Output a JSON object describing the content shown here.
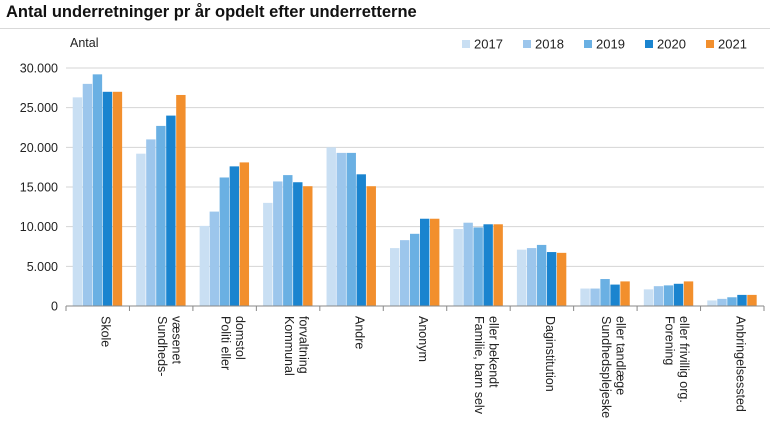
{
  "chart_data": {
    "type": "bar",
    "title": "Antal underretninger pr år opdelt efter underretterne",
    "ylabel": "Antal",
    "xlabel": "",
    "ylim": [
      0,
      30000
    ],
    "yticks": [
      0,
      5000,
      10000,
      15000,
      20000,
      25000,
      30000
    ],
    "ytick_labels": [
      "0",
      "5.000",
      "10.000",
      "15.000",
      "20.000",
      "25.000",
      "30.000"
    ],
    "grid": true,
    "legend_position": "top-right",
    "categories": [
      [
        "Skole"
      ],
      [
        "Sundheds-",
        "væsenet"
      ],
      [
        "Politi eller",
        "domstol"
      ],
      [
        "Kommunal",
        "forvaltning"
      ],
      [
        "Andre"
      ],
      [
        "Anonym"
      ],
      [
        "Familie, barn selv",
        "eller bekendt"
      ],
      [
        "Daginstitution"
      ],
      [
        "Sundhedsplejeske",
        "eller tandlæge"
      ],
      [
        "Forening",
        "eller frivillig org."
      ],
      [
        "Anbringelsessted"
      ]
    ],
    "series": [
      {
        "name": "2017",
        "color": "#c9dff3",
        "values": [
          26300,
          19200,
          10100,
          13000,
          20000,
          7300,
          9700,
          7100,
          2200,
          2100,
          700
        ]
      },
      {
        "name": "2018",
        "color": "#9cc6ec",
        "values": [
          28000,
          21000,
          11900,
          15700,
          19300,
          8300,
          10500,
          7300,
          2200,
          2500,
          900
        ]
      },
      {
        "name": "2019",
        "color": "#6ab0e3",
        "values": [
          29200,
          22700,
          16200,
          16500,
          19300,
          9100,
          9900,
          7700,
          3400,
          2600,
          1100
        ]
      },
      {
        "name": "2020",
        "color": "#1a84cf",
        "values": [
          27000,
          24000,
          17600,
          15600,
          16600,
          11000,
          10300,
          6800,
          2700,
          2800,
          1400
        ]
      },
      {
        "name": "2021",
        "color": "#f28f2d",
        "values": [
          27000,
          26600,
          18100,
          15100,
          15100,
          11000,
          10300,
          6700,
          3100,
          3100,
          1400
        ]
      }
    ]
  }
}
